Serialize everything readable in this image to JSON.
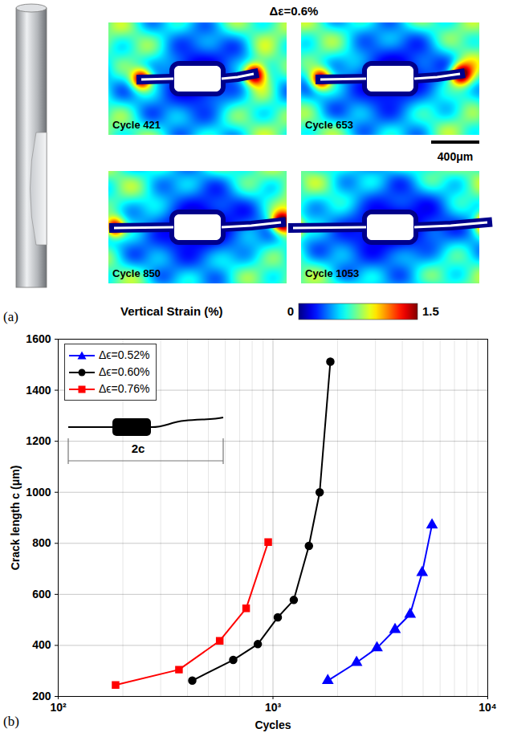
{
  "panel_a": {
    "label": "(a)",
    "title": "Δε=0.6%",
    "maps": [
      {
        "label": "Cycle 421"
      },
      {
        "label": "Cycle 653"
      },
      {
        "label": "Cycle 850"
      },
      {
        "label": "Cycle 1053"
      }
    ],
    "scale_bar": "400μm",
    "colorbar": {
      "label": "Vertical Strain (%)",
      "range": [
        0,
        1.5
      ],
      "ticks": [
        0,
        1.5
      ]
    }
  },
  "chart_data": {
    "type": "line",
    "panel_label": "(b)",
    "x_label": "Cycles",
    "y_label": "Crack length c (μm)",
    "log": "x",
    "xlim": [
      100,
      10000
    ],
    "xticks": [
      {
        "value": 100,
        "label": "10²"
      },
      {
        "value": 1000,
        "label": "10³"
      },
      {
        "value": 10000,
        "label": "10⁴"
      }
    ],
    "ylim": [
      200,
      1600
    ],
    "yticks": [
      200,
      400,
      600,
      800,
      1000,
      1200,
      1400,
      1600
    ],
    "grid": true,
    "legend": "upper left",
    "annotations": [
      "2c"
    ],
    "series": [
      {
        "name": "Δϵ=0.52%",
        "color": "#0000ff",
        "marker": "triangle",
        "x": [
          1800,
          2450,
          3050,
          3700,
          4350,
          4950,
          5500
        ],
        "values": [
          262,
          333,
          390,
          462,
          522,
          685,
          872
        ]
      },
      {
        "name": "Δϵ=0.60%",
        "color": "#000000",
        "marker": "circle",
        "x": [
          421,
          653,
          850,
          1053,
          1250,
          1470,
          1650,
          1850
        ],
        "values": [
          262,
          343,
          405,
          510,
          578,
          790,
          1000,
          1512
        ]
      },
      {
        "name": "Δϵ=0.76%",
        "color": "#ff0000",
        "marker": "square",
        "x": [
          185,
          365,
          565,
          750,
          950
        ],
        "values": [
          245,
          305,
          418,
          545,
          805
        ]
      }
    ]
  }
}
